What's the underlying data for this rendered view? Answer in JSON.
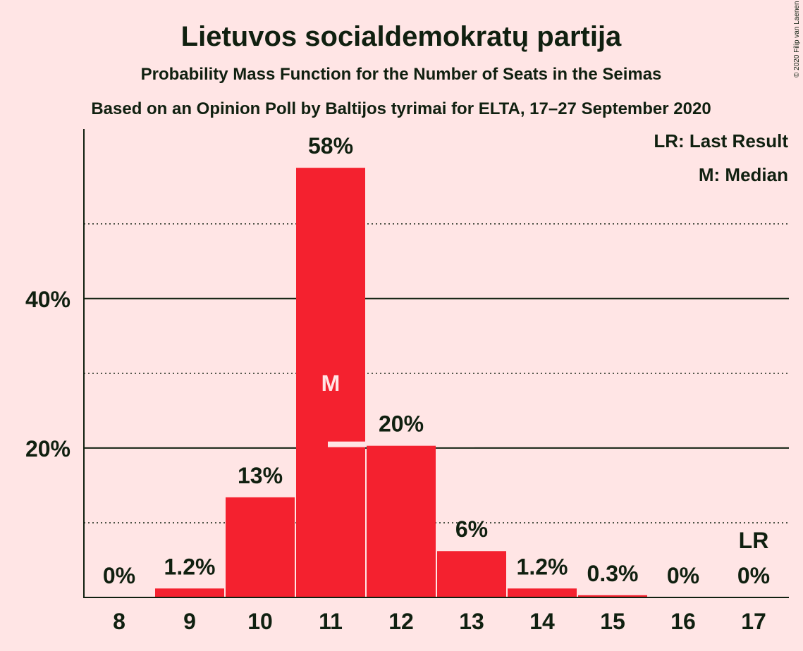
{
  "chart_data": {
    "type": "bar",
    "title": "Lietuvos socialdemokratų partija",
    "subtitle": "Probability Mass Function for the Number of Seats in the Seimas",
    "subtitle2": "Based on an Opinion Poll by Baltijos tyrimai for ELTA, 17–27 September 2020",
    "copyright": "© 2020 Filip van Laenen",
    "categories": [
      "8",
      "9",
      "10",
      "11",
      "12",
      "13",
      "14",
      "15",
      "16",
      "17"
    ],
    "values": [
      0,
      1.2,
      13.4,
      57.5,
      20.3,
      6.2,
      1.2,
      0.3,
      0,
      0
    ],
    "value_labels": [
      "0%",
      "1.2%",
      "13%",
      "58%",
      "20%",
      "6%",
      "1.2%",
      "0.3%",
      "0%",
      "0%"
    ],
    "ylim": [
      0,
      62.7
    ],
    "yticks": [
      {
        "value": 20,
        "label": "20%"
      },
      {
        "value": 40,
        "label": "40%"
      }
    ],
    "minor_gridlines": [
      10,
      30,
      50
    ],
    "median_category": "11",
    "median_mark": "M",
    "last_result_category": "17",
    "last_result_mark": "LR",
    "legend": [
      "LR: Last Result",
      "M: Median"
    ],
    "legend_position": "top-right",
    "colors": {
      "bar": "#f4212f",
      "background": "#ffe5e5",
      "text": "#102010",
      "gridline": "#102010"
    }
  }
}
